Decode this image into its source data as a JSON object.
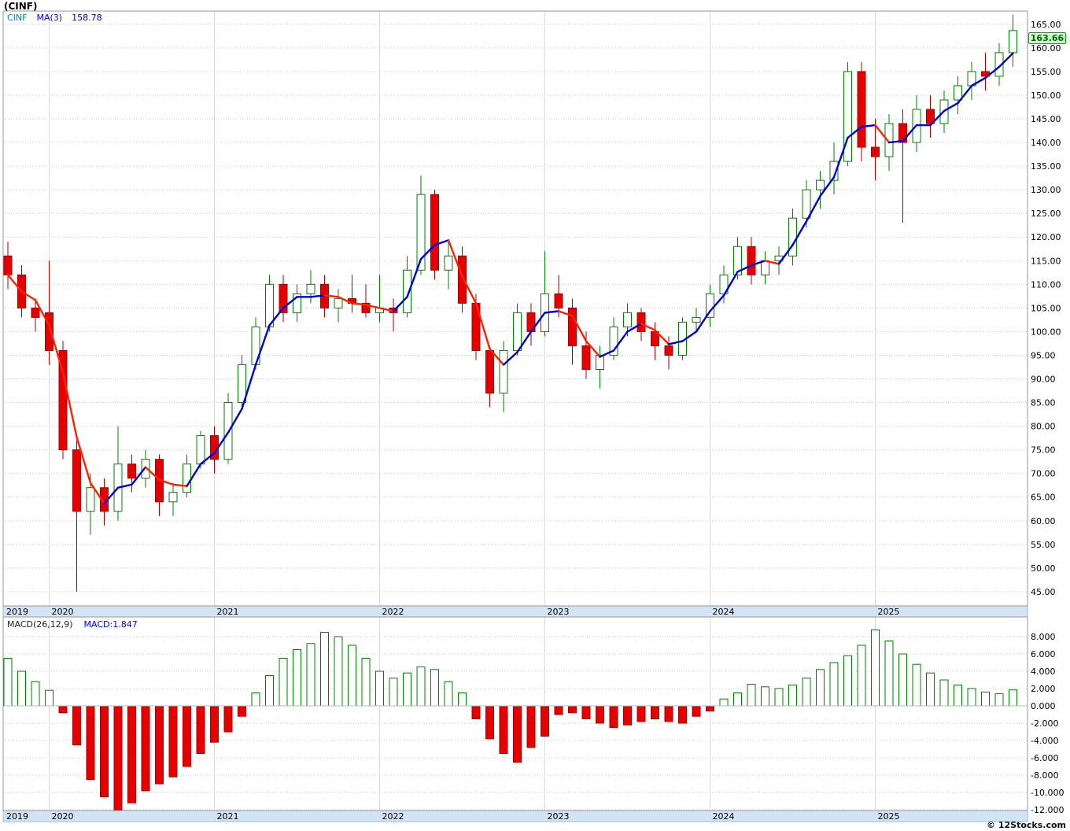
{
  "title": "(CINF)",
  "legend": {
    "symbol": "CINF",
    "ma_label": "MA(3)",
    "ma_value": "158.78"
  },
  "macd_legend": {
    "label": "MACD(26,12,9)",
    "value": "MACD:1.847"
  },
  "last_price_label": "163.66",
  "copyright": "© 12Stocks.com",
  "colors": {
    "up": "#008000",
    "down": "#e60000",
    "down_edge": "#aa0000",
    "ma_up": "#0000dd",
    "ma_down": "#ff2200",
    "grid": "#c9c9c9",
    "year_line": "#d8d8d8",
    "panel_border": "#999999",
    "strip_bg": "#d2e4f5",
    "strip_edge": "#9fb8d0",
    "axis_text": "#000000",
    "year_text": "#000000",
    "legend_symbol": "#008b8b",
    "legend_ma": "#0000ff",
    "legend_value": "#0000bb",
    "macd_label": "#222222",
    "macd_value": "#0000ff",
    "last_price_bg": "#ccffcc",
    "last_price_edge": "#00aa00",
    "last_price_text": "#006600"
  },
  "chart_data": [
    {
      "type": "candlestick",
      "name": "CINF monthly price",
      "title": "(CINF)",
      "overlay": {
        "type": "moving_average",
        "label": "MA(3)",
        "period": 3,
        "last_value": 158.78
      },
      "last_price": 163.66,
      "ylim": [
        42,
        168
      ],
      "y_ticks": [
        165,
        160,
        155,
        150,
        145,
        140,
        135,
        130,
        125,
        120,
        115,
        110,
        105,
        100,
        95,
        90,
        85,
        80,
        75,
        70,
        65,
        60,
        55,
        50,
        45
      ],
      "x_year_labels": [
        "2019",
        "2020",
        "2021",
        "2022",
        "2023",
        "2024",
        "2025"
      ],
      "columns": [
        "month",
        "open",
        "high",
        "low",
        "close"
      ],
      "candles": [
        [
          "2019-10",
          116,
          119,
          109,
          112
        ],
        [
          "2019-11",
          112,
          114,
          103,
          105
        ],
        [
          "2019-12",
          105,
          107,
          100,
          103
        ],
        [
          "2020-01",
          104,
          115,
          93,
          96
        ],
        [
          "2020-02",
          96,
          98,
          73,
          75
        ],
        [
          "2020-03",
          75,
          77,
          45,
          62
        ],
        [
          "2020-04",
          62,
          70,
          57,
          67
        ],
        [
          "2020-05",
          67,
          69,
          59,
          62
        ],
        [
          "2020-06",
          62,
          80,
          60,
          72
        ],
        [
          "2020-07",
          72,
          74,
          66,
          69
        ],
        [
          "2020-08",
          69,
          75,
          67,
          73
        ],
        [
          "2020-09",
          73,
          74,
          61,
          64
        ],
        [
          "2020-10",
          64,
          68,
          61,
          66
        ],
        [
          "2020-11",
          66,
          74,
          65,
          72
        ],
        [
          "2020-12",
          72,
          79,
          71,
          78
        ],
        [
          "2021-01",
          78,
          80,
          70,
          73
        ],
        [
          "2021-02",
          73,
          87,
          72,
          85
        ],
        [
          "2021-03",
          85,
          95,
          84,
          93
        ],
        [
          "2021-04",
          93,
          103,
          92,
          101
        ],
        [
          "2021-05",
          101,
          112,
          100,
          110
        ],
        [
          "2021-06",
          110,
          112,
          102,
          104
        ],
        [
          "2021-07",
          104,
          110,
          102,
          108
        ],
        [
          "2021-08",
          108,
          113,
          106,
          110
        ],
        [
          "2021-09",
          110,
          112,
          103,
          105
        ],
        [
          "2021-10",
          105,
          109,
          102,
          107
        ],
        [
          "2021-11",
          107,
          112,
          104,
          106
        ],
        [
          "2021-12",
          106,
          110,
          103,
          104
        ],
        [
          "2022-01",
          104,
          112,
          102,
          105
        ],
        [
          "2022-02",
          105,
          107,
          100,
          104
        ],
        [
          "2022-03",
          104,
          116,
          103,
          113
        ],
        [
          "2022-04",
          113,
          133,
          112,
          129
        ],
        [
          "2022-05",
          129,
          130,
          111,
          113
        ],
        [
          "2022-06",
          113,
          119,
          109,
          116
        ],
        [
          "2022-07",
          116,
          118,
          104,
          106
        ],
        [
          "2022-08",
          106,
          108,
          94,
          96
        ],
        [
          "2022-09",
          96,
          97,
          84,
          87
        ],
        [
          "2022-10",
          87,
          98,
          83,
          96
        ],
        [
          "2022-11",
          96,
          106,
          95,
          104
        ],
        [
          "2022-12",
          104,
          106,
          97,
          100
        ],
        [
          "2023-01",
          100,
          117,
          99,
          108
        ],
        [
          "2023-02",
          108,
          112,
          103,
          105
        ],
        [
          "2023-03",
          105,
          107,
          93,
          97
        ],
        [
          "2023-04",
          97,
          100,
          90,
          92
        ],
        [
          "2023-05",
          92,
          97,
          88,
          95
        ],
        [
          "2023-06",
          95,
          103,
          94,
          101
        ],
        [
          "2023-07",
          101,
          106,
          99,
          104
        ],
        [
          "2023-08",
          104,
          105,
          98,
          100
        ],
        [
          "2023-09",
          100,
          102,
          94,
          97
        ],
        [
          "2023-10",
          97,
          99,
          92,
          95
        ],
        [
          "2023-11",
          95,
          103,
          94,
          102
        ],
        [
          "2023-12",
          102,
          105,
          100,
          103
        ],
        [
          "2024-01",
          103,
          110,
          101,
          108
        ],
        [
          "2024-02",
          108,
          114,
          106,
          112
        ],
        [
          "2024-03",
          112,
          120,
          111,
          118
        ],
        [
          "2024-04",
          118,
          120,
          110,
          112
        ],
        [
          "2024-05",
          112,
          117,
          110,
          115
        ],
        [
          "2024-06",
          115,
          118,
          112,
          116
        ],
        [
          "2024-07",
          116,
          126,
          114,
          124
        ],
        [
          "2024-08",
          124,
          132,
          122,
          130
        ],
        [
          "2024-09",
          130,
          134,
          126,
          132
        ],
        [
          "2024-10",
          132,
          140,
          129,
          136
        ],
        [
          "2024-11",
          136,
          157,
          135,
          155
        ],
        [
          "2024-12",
          155,
          157,
          136,
          139
        ],
        [
          "2025-01",
          139,
          145,
          132,
          137
        ],
        [
          "2025-02",
          137,
          146,
          134,
          144
        ],
        [
          "2025-03",
          144,
          147,
          123,
          140
        ],
        [
          "2025-04",
          140,
          150,
          138,
          147
        ],
        [
          "2025-05",
          147,
          150,
          141,
          144
        ],
        [
          "2025-06",
          144,
          151,
          142,
          149
        ],
        [
          "2025-07",
          149,
          154,
          146,
          152
        ],
        [
          "2025-08",
          152,
          157,
          149,
          155
        ],
        [
          "2025-09",
          155,
          159,
          151,
          154
        ],
        [
          "2025-10",
          154,
          161,
          152,
          159
        ],
        [
          "2025-11",
          159,
          167,
          156,
          163.66
        ]
      ]
    },
    {
      "type": "bar",
      "name": "MACD(26,12,9) histogram",
      "last_value": 1.847,
      "ylim": [
        -12.8,
        10.3
      ],
      "y_ticks": [
        8,
        6,
        4,
        2,
        0,
        -2,
        -4,
        -6,
        -8,
        -10,
        -12
      ],
      "aligned_to": "monthly candles of first chart",
      "values": [
        5.5,
        4.0,
        2.8,
        1.8,
        -0.8,
        -4.5,
        -8.5,
        -10.5,
        -12.0,
        -11.2,
        -9.8,
        -9.0,
        -8.2,
        -7.0,
        -5.5,
        -4.2,
        -3.0,
        -1.2,
        1.5,
        3.5,
        5.5,
        6.5,
        7.2,
        8.5,
        8.0,
        7.0,
        5.5,
        4.0,
        3.2,
        3.8,
        4.5,
        4.2,
        2.8,
        1.5,
        -1.5,
        -3.8,
        -5.5,
        -6.5,
        -4.8,
        -3.5,
        -1.0,
        -0.8,
        -1.5,
        -2.0,
        -2.5,
        -2.2,
        -1.8,
        -1.5,
        -1.8,
        -2.0,
        -1.2,
        -0.6,
        0.8,
        1.5,
        2.5,
        2.2,
        2.0,
        2.4,
        3.2,
        4.2,
        5.0,
        5.8,
        7.0,
        8.8,
        7.5,
        6.0,
        4.8,
        3.8,
        3.0,
        2.4,
        2.0,
        1.6,
        1.4,
        1.847
      ]
    }
  ]
}
